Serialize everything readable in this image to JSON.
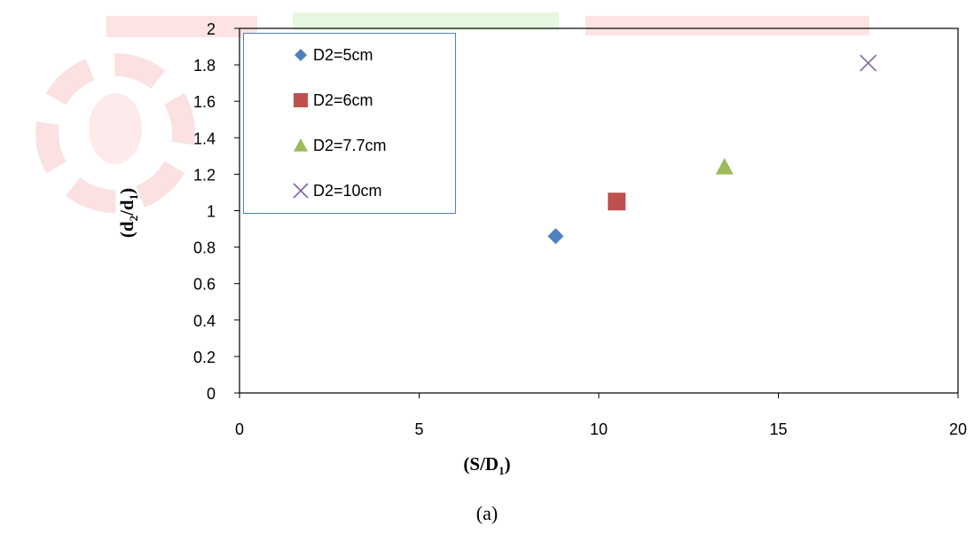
{
  "chart_data": {
    "type": "scatter",
    "x_range": [
      0,
      20
    ],
    "y_range": [
      0,
      2
    ],
    "x_ticks": [
      "0",
      "5",
      "10",
      "15",
      "20"
    ],
    "y_ticks": [
      "0",
      "0.2",
      "0.4",
      "0.6",
      "0.8",
      "1",
      "1.2",
      "1.4",
      "1.6",
      "1.8",
      "2"
    ],
    "xlabel": {
      "main": "(S/D",
      "sub": "1",
      "tail": ")"
    },
    "ylabel": {
      "p1": "(d",
      "s1": "2",
      "p2": "/d",
      "s2": "1",
      "p3": ")"
    },
    "grid": false,
    "legend_position": "top-left",
    "series": [
      {
        "name": "D2=5cm",
        "marker": "diamond",
        "color": "#4f81bd",
        "points": [
          {
            "x": 8.8,
            "y": 0.86
          }
        ]
      },
      {
        "name": "D2=6cm",
        "marker": "square",
        "color": "#c0504d",
        "points": [
          {
            "x": 10.5,
            "y": 1.05
          }
        ]
      },
      {
        "name": "D2=7.7cm",
        "marker": "triangle",
        "color": "#9bbb59",
        "points": [
          {
            "x": 13.5,
            "y": 1.24
          }
        ]
      },
      {
        "name": "D2=10cm",
        "marker": "x",
        "color": "#8064a2",
        "points": [
          {
            "x": 17.5,
            "y": 1.81
          }
        ]
      }
    ]
  },
  "caption": "(a)"
}
